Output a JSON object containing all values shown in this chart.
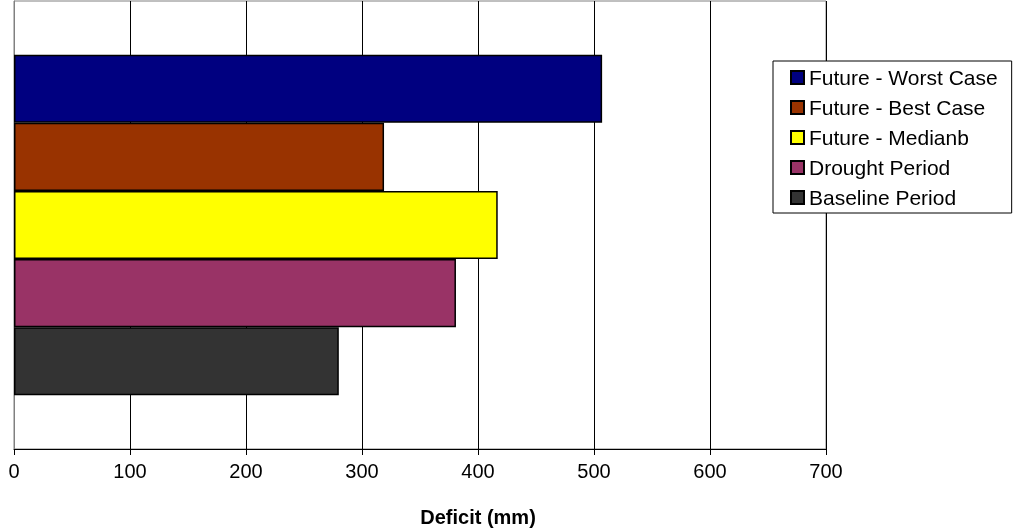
{
  "chart_data": {
    "type": "bar",
    "orientation": "horizontal",
    "categories": [
      null
    ],
    "series": [
      {
        "name": "Future - Worst Case",
        "color": "#000080",
        "values": [
          507
        ]
      },
      {
        "name": "Future - Best Case",
        "color": "#993300",
        "values": [
          319
        ]
      },
      {
        "name": "Future - Medianb",
        "color": "#ffff00",
        "values": [
          417
        ]
      },
      {
        "name": "Drought Period",
        "color": "#993366",
        "values": [
          381
        ]
      },
      {
        "name": "Baseline Period",
        "color": "#333333",
        "values": [
          280
        ]
      }
    ],
    "xlabel": "Deficit (mm)",
    "xlim": [
      0,
      700
    ],
    "xticks": [
      0,
      100,
      200,
      300,
      400,
      500,
      600,
      700
    ],
    "grid": "x",
    "legend": "right"
  }
}
